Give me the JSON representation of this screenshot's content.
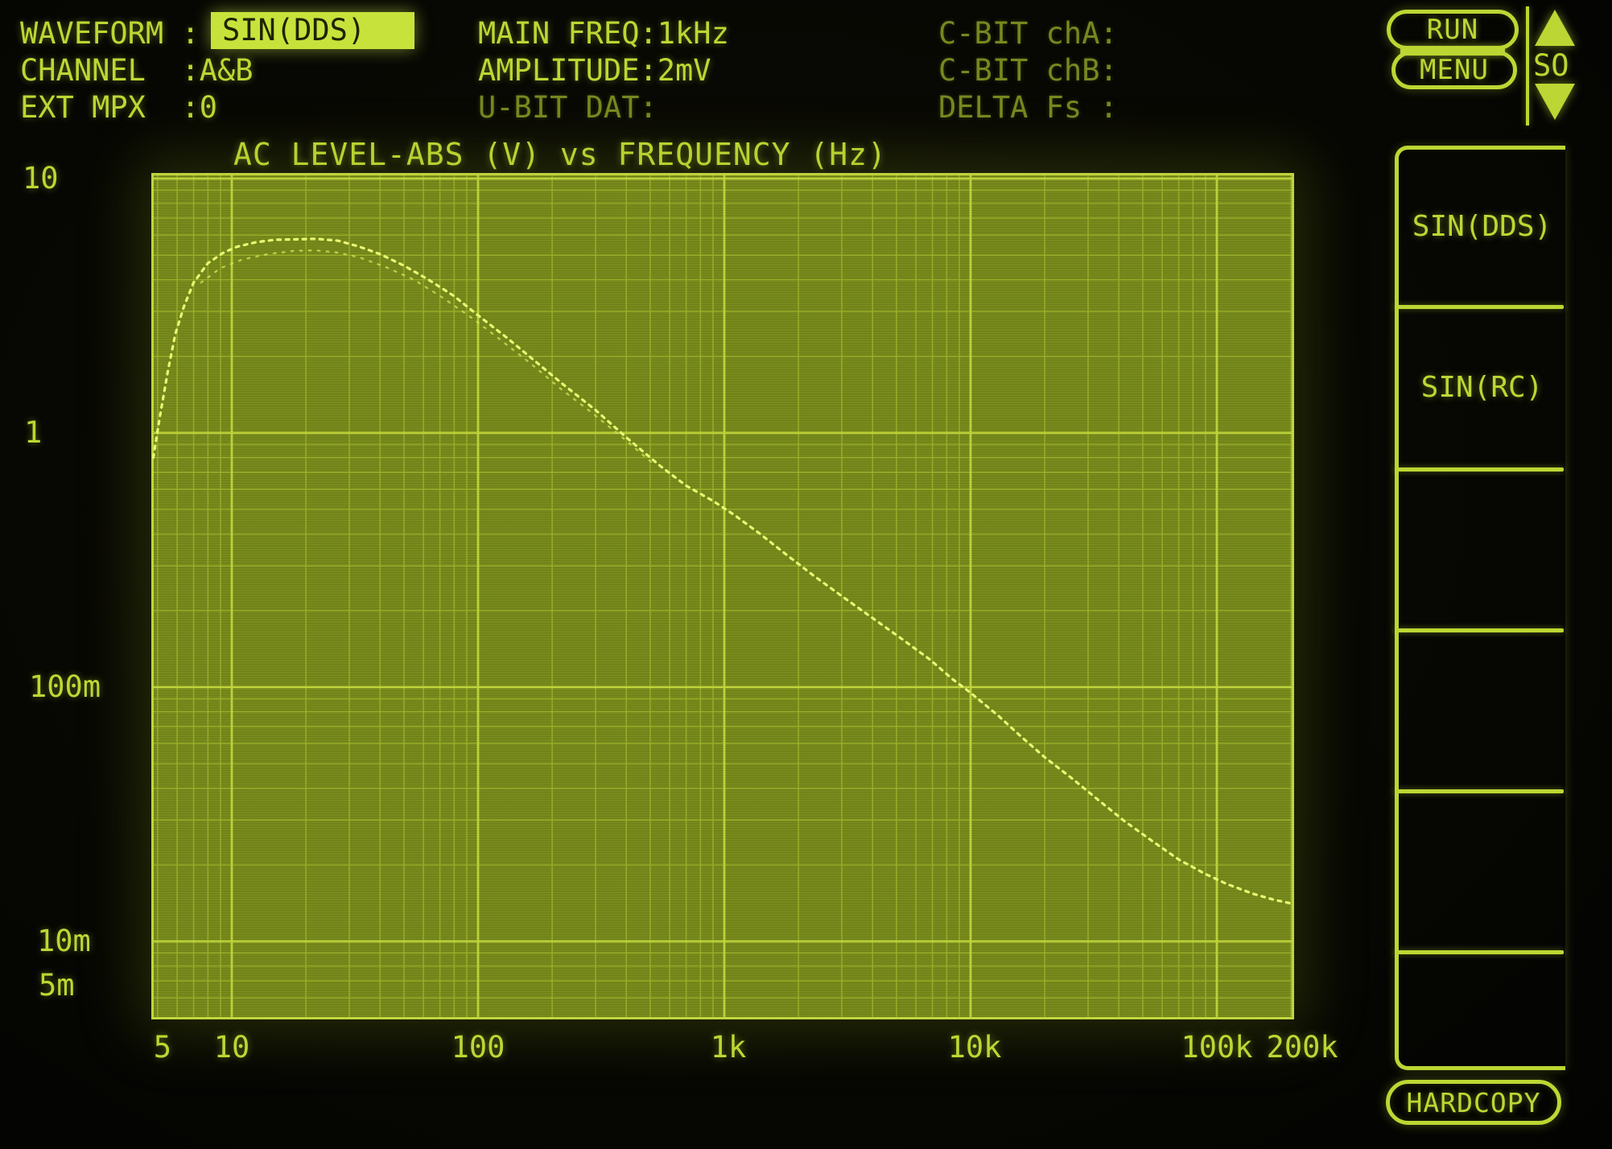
{
  "colors": {
    "accent_bright": "#bcd733",
    "accent_dim": "#76881f",
    "highlight_bg": "#c8e23c",
    "highlight_text": "#1c2400",
    "plot_background": "#76891a",
    "grid_minor": "#9fb42b",
    "grid_major": "#c4da3d",
    "trace": "#eeff74",
    "screen_background": "#070703"
  },
  "header": {
    "rows": [
      {
        "label": "WAVEFORM :",
        "value": "SIN(DDS)"
      },
      {
        "label": "CHANNEL  :A&B"
      },
      {
        "label": "EXT MPX  :0"
      }
    ],
    "mid_rows": [
      "MAIN FREQ:1kHz",
      "AMPLITUDE:2mV",
      "U-BIT DAT:"
    ],
    "right_rows": [
      "C-BIT chA:",
      "C-BIT chB:",
      "DELTA Fs :"
    ]
  },
  "top_controls": {
    "run_label": "RUN",
    "menu_label": "MENU",
    "page_label": "SO",
    "up_arrow_icon": "up-triangle",
    "down_arrow_icon": "down-triangle"
  },
  "softkeys": {
    "items": [
      {
        "label": "SIN(DDS)"
      },
      {
        "label": "SIN(RC)"
      },
      {
        "label": ""
      },
      {
        "label": ""
      },
      {
        "label": ""
      },
      {
        "label": ""
      }
    ]
  },
  "bottom_controls": {
    "hardcopy_label": "HARDCOPY"
  },
  "chart_data": {
    "type": "line",
    "title": "AC LEVEL-ABS (V) vs FREQUENCY (Hz)",
    "x_scale": "log",
    "y_scale": "log",
    "xlabel": "FREQUENCY (Hz)",
    "ylabel": "AC LEVEL-ABS (V)",
    "xlim": [
      4.7,
      200000
    ],
    "ylim": [
      0.005,
      10
    ],
    "grid": true,
    "legend_position": "none",
    "x_ticks": [
      {
        "f": 5,
        "label": "5",
        "dx": 6
      },
      {
        "f": 10,
        "label": "10"
      },
      {
        "f": 100,
        "label": "100"
      },
      {
        "f": 1000,
        "label": "1k",
        "dx": 5
      },
      {
        "f": 10000,
        "label": "10k",
        "dx": 5
      },
      {
        "f": 100000,
        "label": "100k"
      },
      {
        "f": 200000,
        "label": "200k",
        "dx": 14
      }
    ],
    "y_ticks": [
      {
        "v": 10,
        "label": "10",
        "x": 28
      },
      {
        "v": 1,
        "label": "1",
        "x": 30
      },
      {
        "v": 0.1,
        "label": "100m",
        "x": 36
      },
      {
        "v": 0.01,
        "label": "10m",
        "x": 46
      },
      {
        "v": 0.005,
        "label": "5m",
        "x": 48,
        "dy": -40
      }
    ],
    "series": [
      {
        "name": "channel A",
        "points": [
          [
            4.8,
            0.8
          ],
          [
            5.1,
            1.15
          ],
          [
            5.5,
            1.75
          ],
          [
            5.9,
            2.45
          ],
          [
            6.4,
            3.15
          ],
          [
            7.0,
            3.9
          ],
          [
            8.0,
            4.65
          ],
          [
            9.2,
            5.1
          ],
          [
            10.5,
            5.4
          ],
          [
            12.5,
            5.62
          ],
          [
            15,
            5.75
          ],
          [
            18,
            5.77
          ],
          [
            22,
            5.8
          ],
          [
            27,
            5.7
          ],
          [
            33,
            5.4
          ],
          [
            40,
            5.05
          ],
          [
            50,
            4.55
          ],
          [
            63,
            4.0
          ],
          [
            80,
            3.45
          ],
          [
            100,
            2.9
          ],
          [
            130,
            2.38
          ],
          [
            170,
            1.92
          ],
          [
            220,
            1.56
          ],
          [
            300,
            1.23
          ],
          [
            400,
            0.96
          ],
          [
            550,
            0.74
          ],
          [
            700,
            0.62
          ],
          [
            900,
            0.54
          ],
          [
            1100,
            0.475
          ],
          [
            1400,
            0.4
          ],
          [
            1800,
            0.33
          ],
          [
            2300,
            0.275
          ],
          [
            3000,
            0.228
          ],
          [
            4000,
            0.187
          ],
          [
            5200,
            0.156
          ],
          [
            6800,
            0.129
          ],
          [
            8500,
            0.107
          ],
          [
            10000,
            0.095
          ],
          [
            13000,
            0.077
          ],
          [
            16000,
            0.064
          ],
          [
            20000,
            0.053
          ],
          [
            26000,
            0.0435
          ],
          [
            33000,
            0.036
          ],
          [
            42000,
            0.0298
          ],
          [
            55000,
            0.0247
          ],
          [
            70000,
            0.021
          ],
          [
            90000,
            0.0184
          ],
          [
            110000,
            0.0168
          ],
          [
            140000,
            0.0154
          ],
          [
            170000,
            0.0146
          ],
          [
            200000,
            0.0141
          ]
        ]
      },
      {
        "name": "channel B (faint)",
        "points": [
          [
            7.5,
            3.9
          ],
          [
            9,
            4.45
          ],
          [
            11,
            4.8
          ],
          [
            14,
            5.05
          ],
          [
            18,
            5.2
          ],
          [
            22,
            5.22
          ],
          [
            27,
            5.12
          ],
          [
            33,
            4.9
          ],
          [
            42,
            4.5
          ],
          [
            55,
            4.0
          ],
          [
            72,
            3.4
          ],
          [
            95,
            2.82
          ],
          [
            125,
            2.3
          ],
          [
            165,
            1.86
          ],
          [
            215,
            1.5
          ],
          [
            290,
            1.2
          ],
          [
            390,
            0.95
          ],
          [
            520,
            0.75
          ]
        ]
      }
    ]
  }
}
